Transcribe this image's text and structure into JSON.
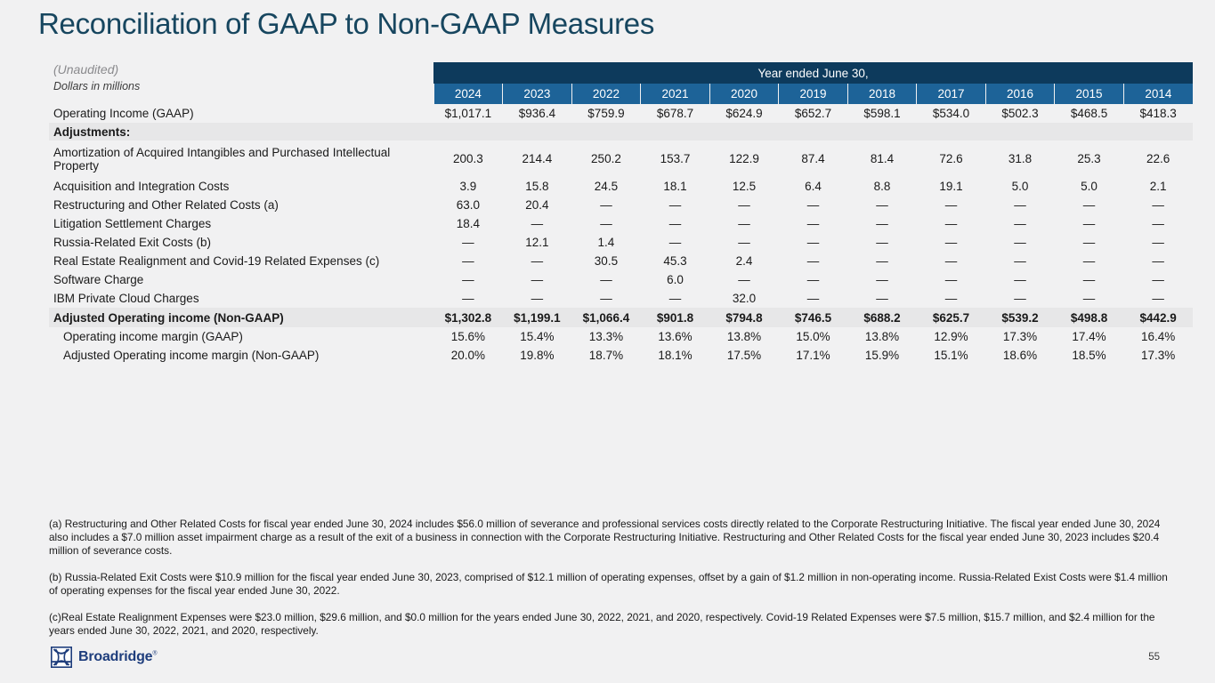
{
  "slide": {
    "title": "Reconciliation of GAAP to Non-GAAP Measures",
    "page_number": "55",
    "logo_text": "Broadridge",
    "logo_trademark": "®"
  },
  "colors": {
    "background": "#f1f1f2",
    "title_text": "#17465f",
    "header_band": "#0d3a5c",
    "year_band": "#1d6398",
    "highlight_row": "#e7e7e8",
    "logo_navy": "#1e3d7c"
  },
  "table": {
    "unaudited_label": "(Unaudited)",
    "units_label": "Dollars in millions",
    "header_band": "Year ended June 30,",
    "years": [
      "2024",
      "2023",
      "2022",
      "2021",
      "2020",
      "2019",
      "2018",
      "2017",
      "2016",
      "2015",
      "2014"
    ],
    "rows": [
      {
        "label": "Operating Income (GAAP)",
        "style": "normal",
        "values": [
          "$1,017.1",
          "$936.4",
          "$759.9",
          "$678.7",
          "$624.9",
          "$652.7",
          "$598.1",
          "$534.0",
          "$502.3",
          "$468.5",
          "$418.3"
        ]
      },
      {
        "label": "Adjustments:",
        "style": "section",
        "values": []
      },
      {
        "label": "Amortization of Acquired Intangibles and Purchased Intellectual Property",
        "style": "tall",
        "values": [
          "200.3",
          "214.4",
          "250.2",
          "153.7",
          "122.9",
          "87.4",
          "81.4",
          "72.6",
          "31.8",
          "25.3",
          "22.6"
        ]
      },
      {
        "label": "Acquisition and Integration Costs",
        "style": "normal",
        "values": [
          "3.9",
          "15.8",
          "24.5",
          "18.1",
          "12.5",
          "6.4",
          "8.8",
          "19.1",
          "5.0",
          "5.0",
          "2.1"
        ]
      },
      {
        "label": "Restructuring and Other Related Costs (a)",
        "style": "normal",
        "values": [
          "63.0",
          "20.4",
          "—",
          "—",
          "—",
          "—",
          "—",
          "—",
          "—",
          "—",
          "—"
        ]
      },
      {
        "label": "Litigation Settlement Charges",
        "style": "normal",
        "values": [
          "18.4",
          "—",
          "—",
          "—",
          "—",
          "—",
          "—",
          "—",
          "—",
          "—",
          "—"
        ]
      },
      {
        "label": "Russia-Related Exit Costs (b)",
        "style": "normal",
        "values": [
          "—",
          "12.1",
          "1.4",
          "—",
          "—",
          "—",
          "—",
          "—",
          "—",
          "—",
          "—"
        ]
      },
      {
        "label": "Real Estate Realignment and Covid-19 Related Expenses (c)",
        "style": "normal",
        "values": [
          "—",
          "—",
          "30.5",
          "45.3",
          "2.4",
          "—",
          "—",
          "—",
          "—",
          "—",
          "—"
        ]
      },
      {
        "label": "Software Charge",
        "style": "normal",
        "values": [
          "—",
          "—",
          "—",
          "6.0",
          "—",
          "—",
          "—",
          "—",
          "—",
          "—",
          "—"
        ]
      },
      {
        "label": "IBM Private Cloud Charges",
        "style": "normal",
        "values": [
          "—",
          "—",
          "—",
          "—",
          "32.0",
          "—",
          "—",
          "—",
          "—",
          "—",
          "—"
        ]
      },
      {
        "label": "Adjusted Operating income (Non-GAAP)",
        "style": "total",
        "values": [
          "$1,302.8",
          "$1,199.1",
          "$1,066.4",
          "$901.8",
          "$794.8",
          "$746.5",
          "$688.2",
          "$625.7",
          "$539.2",
          "$498.8",
          "$442.9"
        ]
      },
      {
        "label": "Operating income margin (GAAP)",
        "style": "margin",
        "values": [
          "15.6%",
          "15.4%",
          "13.3%",
          "13.6%",
          "13.8%",
          "15.0%",
          "13.8%",
          "12.9%",
          "17.3%",
          "17.4%",
          "16.4%"
        ]
      },
      {
        "label": "Adjusted Operating income margin (Non-GAAP)",
        "style": "margin",
        "values": [
          "20.0%",
          "19.8%",
          "18.7%",
          "18.1%",
          "17.5%",
          "17.1%",
          "15.9%",
          "15.1%",
          "18.6%",
          "18.5%",
          "17.3%"
        ]
      }
    ]
  },
  "footnotes": [
    "(a) Restructuring and Other Related Costs for fiscal year ended June 30, 2024 includes $56.0 million of severance and professional services costs directly related to the Corporate Restructuring Initiative. The fiscal year ended June 30, 2024 also includes a $7.0 million asset impairment charge as a result of the exit of a business in connection with the Corporate Restructuring Initiative. Restructuring and Other Related Costs for the fiscal year ended June 30, 2023 includes $20.4 million of severance costs.",
    "(b) Russia-Related Exit Costs were $10.9 million for the fiscal year ended June 30, 2023, comprised of $12.1 million of operating expenses, offset by a gain of $1.2 million in non-operating income. Russia-Related Exist Costs were $1.4 million of operating expenses for the fiscal year ended June 30, 2022.",
    "(c)Real Estate Realignment Expenses were $23.0 million, $29.6 million, and $0.0 million  for the years ended June 30, 2022, 2021, and 2020, respectively. Covid-19 Related Expenses were $7.5 million, $15.7 million, and $2.4 million for the years ended June 30, 2022, 2021, and 2020, respectively."
  ]
}
